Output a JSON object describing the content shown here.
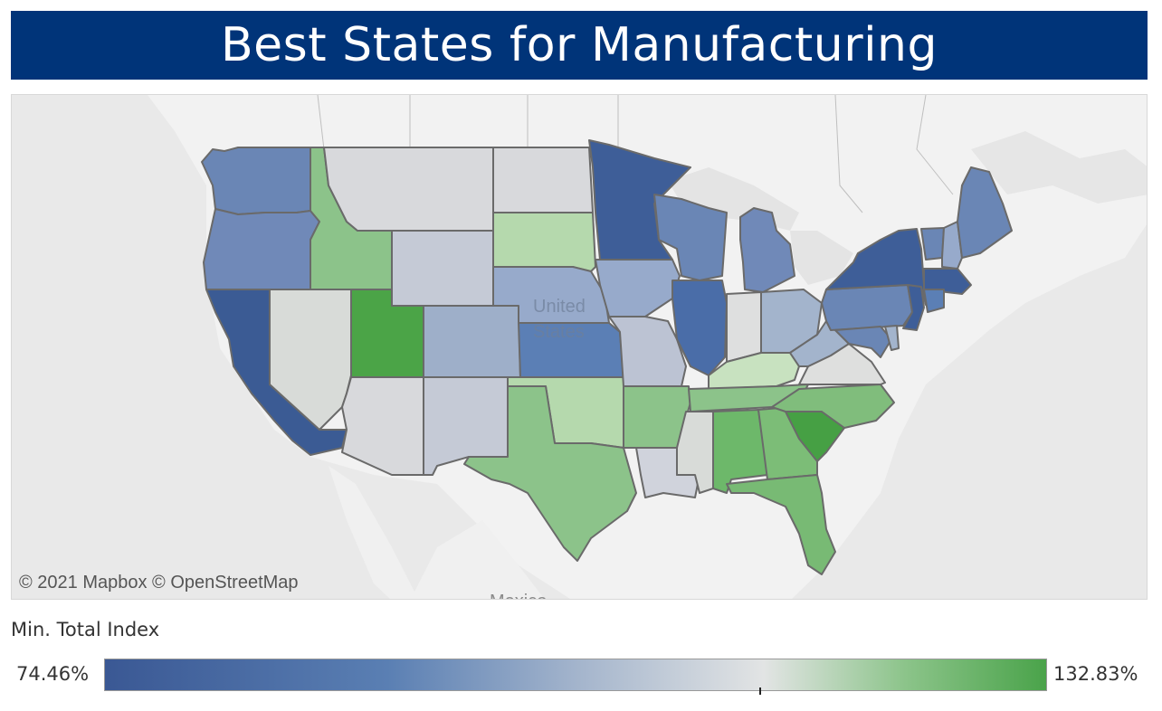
{
  "title": "Best States for Manufacturing",
  "map": {
    "country_label_line1": "United",
    "country_label_line2": "States",
    "neighbor_label": "Mexico",
    "attribution": "© 2021 Mapbox  © OpenStreetMap",
    "states": [
      {
        "name": "Washington",
        "color": "#6a86b5"
      },
      {
        "name": "Oregon",
        "color": "#7089b8"
      },
      {
        "name": "California",
        "color": "#3b5b94"
      },
      {
        "name": "Nevada",
        "color": "#d8dbd8"
      },
      {
        "name": "Idaho",
        "color": "#8cc38a"
      },
      {
        "name": "Montana",
        "color": "#d8d9dc"
      },
      {
        "name": "Wyoming",
        "color": "#c5cad6"
      },
      {
        "name": "Utah",
        "color": "#4ba447"
      },
      {
        "name": "Colorado",
        "color": "#9eafc9"
      },
      {
        "name": "Arizona",
        "color": "#d8d9dc"
      },
      {
        "name": "New Mexico",
        "color": "#c5cad6"
      },
      {
        "name": "North Dakota",
        "color": "#d8d9dc"
      },
      {
        "name": "South Dakota",
        "color": "#b5d9ad"
      },
      {
        "name": "Nebraska",
        "color": "#97aacb"
      },
      {
        "name": "Kansas",
        "color": "#5b7fb5"
      },
      {
        "name": "Oklahoma",
        "color": "#b5d9ad"
      },
      {
        "name": "Texas",
        "color": "#8cc38a"
      },
      {
        "name": "Minnesota",
        "color": "#3e5e98"
      },
      {
        "name": "Iowa",
        "color": "#97aacb"
      },
      {
        "name": "Missouri",
        "color": "#bcc3d3"
      },
      {
        "name": "Arkansas",
        "color": "#8cc38a"
      },
      {
        "name": "Louisiana",
        "color": "#d0d3dc"
      },
      {
        "name": "Wisconsin",
        "color": "#6a86b5"
      },
      {
        "name": "Illinois",
        "color": "#4a6da8"
      },
      {
        "name": "Michigan",
        "color": "#7089b8"
      },
      {
        "name": "Indiana",
        "color": "#dedfdf"
      },
      {
        "name": "Ohio",
        "color": "#a3b4cc"
      },
      {
        "name": "Kentucky",
        "color": "#c8e2c0"
      },
      {
        "name": "Tennessee",
        "color": "#8cc38a"
      },
      {
        "name": "Mississippi",
        "color": "#d8dbd8"
      },
      {
        "name": "Alabama",
        "color": "#6db86a"
      },
      {
        "name": "Georgia",
        "color": "#7cbd77"
      },
      {
        "name": "Florida",
        "color": "#78ba74"
      },
      {
        "name": "South Carolina",
        "color": "#46a044"
      },
      {
        "name": "North Carolina",
        "color": "#80bd7c"
      },
      {
        "name": "Virginia",
        "color": "#dedfde"
      },
      {
        "name": "West Virginia",
        "color": "#a3b4cc"
      },
      {
        "name": "Pennsylvania",
        "color": "#6a86b5"
      },
      {
        "name": "New York",
        "color": "#3e5e98"
      },
      {
        "name": "Vermont",
        "color": "#6a86b5"
      },
      {
        "name": "New Hampshire",
        "color": "#97aacb"
      },
      {
        "name": "Maine",
        "color": "#6a86b5"
      },
      {
        "name": "Massachusetts",
        "color": "#3e5e98"
      },
      {
        "name": "Connecticut",
        "color": "#5b7fb5"
      },
      {
        "name": "New Jersey",
        "color": "#3e5e98"
      },
      {
        "name": "Maryland",
        "color": "#6a86b5"
      },
      {
        "name": "Delaware",
        "color": "#a3b4cc"
      }
    ]
  },
  "legend": {
    "title": "Min. Total Index",
    "min_label": "74.46%",
    "max_label": "132.83%",
    "min_value": 74.46,
    "max_value": 132.83,
    "marker_value": 115
  }
}
